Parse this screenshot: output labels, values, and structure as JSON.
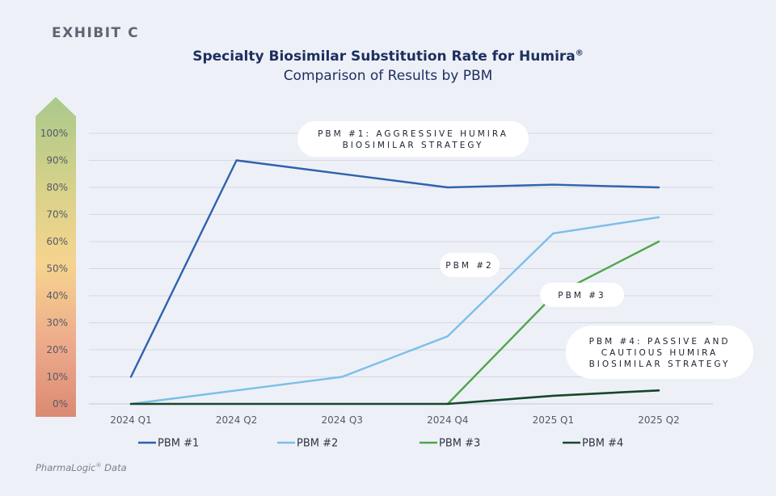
{
  "header": {
    "exhibit": "EXHIBIT C"
  },
  "chart_data": {
    "type": "line",
    "title": "Specialty Biosimilar Substitution Rate for Humira",
    "title_sup": "®",
    "subtitle": "Comparison of Results by PBM",
    "categories": [
      "2024 Q1",
      "2024 Q2",
      "2024 Q3",
      "2024 Q4",
      "2025 Q1",
      "2025 Q2"
    ],
    "ylim": [
      0,
      100
    ],
    "ytick_labels": [
      "0%",
      "10%",
      "20%",
      "30%",
      "40%",
      "50%",
      "60%",
      "70%",
      "80%",
      "90%",
      "100%"
    ],
    "grid": true,
    "series": [
      {
        "name": "PBM #1",
        "color": "#2f62ad",
        "values": [
          10,
          90,
          85,
          80,
          81,
          80
        ]
      },
      {
        "name": "PBM #2",
        "color": "#7bbfe8",
        "values": [
          0,
          5,
          10,
          25,
          63,
          69
        ]
      },
      {
        "name": "PBM #3",
        "color": "#4fa64a",
        "values": [
          null,
          null,
          null,
          0,
          40,
          60
        ]
      },
      {
        "name": "PBM #4",
        "color": "#14482a",
        "values": [
          0,
          0,
          0,
          0,
          3,
          5
        ]
      }
    ],
    "annotations": [
      {
        "lines": [
          "PBM #1: AGGRESSIVE HUMIRA",
          "BIOSIMILAR STRATEGY"
        ]
      },
      {
        "lines": [
          "PBM #2"
        ]
      },
      {
        "lines": [
          "PBM #3"
        ]
      },
      {
        "lines": [
          "PBM #4: PASSIVE AND",
          "CAUTIOUS HUMIRA",
          "BIOSIMILAR STRATEGY"
        ]
      }
    ],
    "legend_position": "bottom"
  },
  "footer": {
    "source": "PharmaLogic",
    "source_sup": "®",
    "source_suffix": " Data"
  }
}
